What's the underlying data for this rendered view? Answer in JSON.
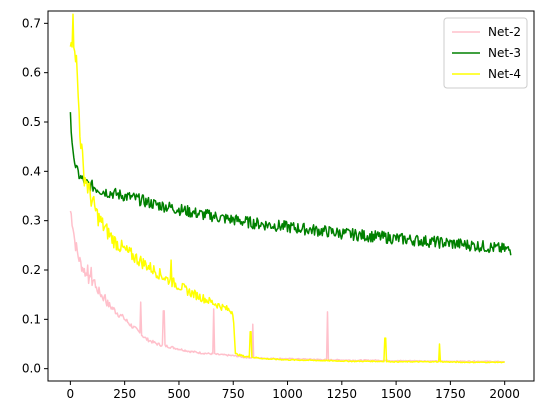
{
  "chart_data": {
    "type": "line",
    "title": "",
    "xlabel": "",
    "ylabel": "",
    "xlim": [
      -103,
      2135
    ],
    "ylim": [
      -0.025,
      0.725
    ],
    "xticks": [
      0,
      250,
      500,
      750,
      1000,
      1250,
      1500,
      1750,
      2000
    ],
    "yticks": [
      0.0,
      0.1,
      0.2,
      0.3,
      0.4,
      0.5,
      0.6,
      0.7
    ],
    "grid": false,
    "legend_position": "upper right",
    "series": [
      {
        "name": "Net-2",
        "color": "#ffc0cb",
        "points": [
          [
            0,
            0.32
          ],
          [
            10,
            0.3
          ],
          [
            20,
            0.26
          ],
          [
            35,
            0.23
          ],
          [
            50,
            0.21
          ],
          [
            75,
            0.19
          ],
          [
            100,
            0.17
          ],
          [
            125,
            0.16
          ],
          [
            150,
            0.145
          ],
          [
            175,
            0.13
          ],
          [
            200,
            0.12
          ],
          [
            225,
            0.11
          ],
          [
            250,
            0.1
          ],
          [
            275,
            0.09
          ],
          [
            300,
            0.08
          ],
          [
            325,
            0.07
          ],
          [
            350,
            0.06
          ],
          [
            400,
            0.05
          ],
          [
            450,
            0.045
          ],
          [
            500,
            0.04
          ],
          [
            550,
            0.035
          ],
          [
            600,
            0.032
          ],
          [
            650,
            0.03
          ],
          [
            700,
            0.028
          ],
          [
            760,
            0.026
          ],
          [
            800,
            0.023
          ],
          [
            900,
            0.021
          ],
          [
            1000,
            0.02
          ],
          [
            1100,
            0.019
          ],
          [
            1200,
            0.018
          ],
          [
            1300,
            0.017
          ],
          [
            1400,
            0.017
          ],
          [
            1500,
            0.016
          ],
          [
            1600,
            0.016
          ],
          [
            1700,
            0.015
          ],
          [
            1800,
            0.015
          ],
          [
            1900,
            0.015
          ],
          [
            2000,
            0.014
          ]
        ],
        "spikes": [
          [
            80,
            0.21
          ],
          [
            95,
            0.205
          ],
          [
            110,
            0.18
          ],
          [
            160,
            0.15
          ],
          [
            245,
            0.105
          ],
          [
            325,
            0.135
          ],
          [
            430,
            0.117
          ],
          [
            660,
            0.121
          ],
          [
            840,
            0.09
          ],
          [
            1185,
            0.115
          ]
        ]
      },
      {
        "name": "Net-3",
        "color": "#008000",
        "points": [
          [
            0,
            0.52
          ],
          [
            5,
            0.47
          ],
          [
            15,
            0.43
          ],
          [
            30,
            0.4
          ],
          [
            50,
            0.385
          ],
          [
            75,
            0.375
          ],
          [
            100,
            0.37
          ],
          [
            150,
            0.36
          ],
          [
            200,
            0.355
          ],
          [
            250,
            0.35
          ],
          [
            300,
            0.345
          ],
          [
            350,
            0.338
          ],
          [
            400,
            0.332
          ],
          [
            450,
            0.328
          ],
          [
            500,
            0.323
          ],
          [
            550,
            0.318
          ],
          [
            600,
            0.313
          ],
          [
            650,
            0.31
          ],
          [
            700,
            0.305
          ],
          [
            750,
            0.302
          ],
          [
            800,
            0.298
          ],
          [
            850,
            0.295
          ],
          [
            900,
            0.292
          ],
          [
            950,
            0.29
          ],
          [
            1000,
            0.287
          ],
          [
            1100,
            0.282
          ],
          [
            1200,
            0.277
          ],
          [
            1300,
            0.272
          ],
          [
            1400,
            0.268
          ],
          [
            1500,
            0.264
          ],
          [
            1600,
            0.26
          ],
          [
            1700,
            0.256
          ],
          [
            1800,
            0.252
          ],
          [
            1900,
            0.248
          ],
          [
            2000,
            0.242
          ],
          [
            2030,
            0.24
          ]
        ],
        "noise": 0.012
      },
      {
        "name": "Net-4",
        "color": "#ffff00",
        "points": [
          [
            0,
            0.685
          ],
          [
            10,
            0.69
          ],
          [
            20,
            0.675
          ],
          [
            30,
            0.6
          ],
          [
            40,
            0.52
          ],
          [
            50,
            0.45
          ],
          [
            60,
            0.4
          ],
          [
            80,
            0.37
          ],
          [
            100,
            0.34
          ],
          [
            125,
            0.31
          ],
          [
            150,
            0.29
          ],
          [
            175,
            0.275
          ],
          [
            200,
            0.26
          ],
          [
            250,
            0.24
          ],
          [
            300,
            0.225
          ],
          [
            350,
            0.21
          ],
          [
            400,
            0.195
          ],
          [
            450,
            0.18
          ],
          [
            500,
            0.168
          ],
          [
            550,
            0.155
          ],
          [
            600,
            0.145
          ],
          [
            650,
            0.135
          ],
          [
            700,
            0.125
          ],
          [
            750,
            0.115
          ],
          [
            760,
            0.03
          ],
          [
            800,
            0.025
          ],
          [
            900,
            0.02
          ],
          [
            1000,
            0.018
          ],
          [
            1100,
            0.017
          ],
          [
            1200,
            0.016
          ],
          [
            1300,
            0.015
          ],
          [
            1400,
            0.015
          ],
          [
            1500,
            0.014
          ],
          [
            1600,
            0.014
          ],
          [
            1700,
            0.014
          ],
          [
            1800,
            0.013
          ],
          [
            1900,
            0.013
          ],
          [
            2000,
            0.013
          ]
        ],
        "spikes": [
          [
            465,
            0.22
          ],
          [
            830,
            0.075
          ],
          [
            1450,
            0.062
          ],
          [
            1700,
            0.05
          ]
        ]
      }
    ]
  }
}
